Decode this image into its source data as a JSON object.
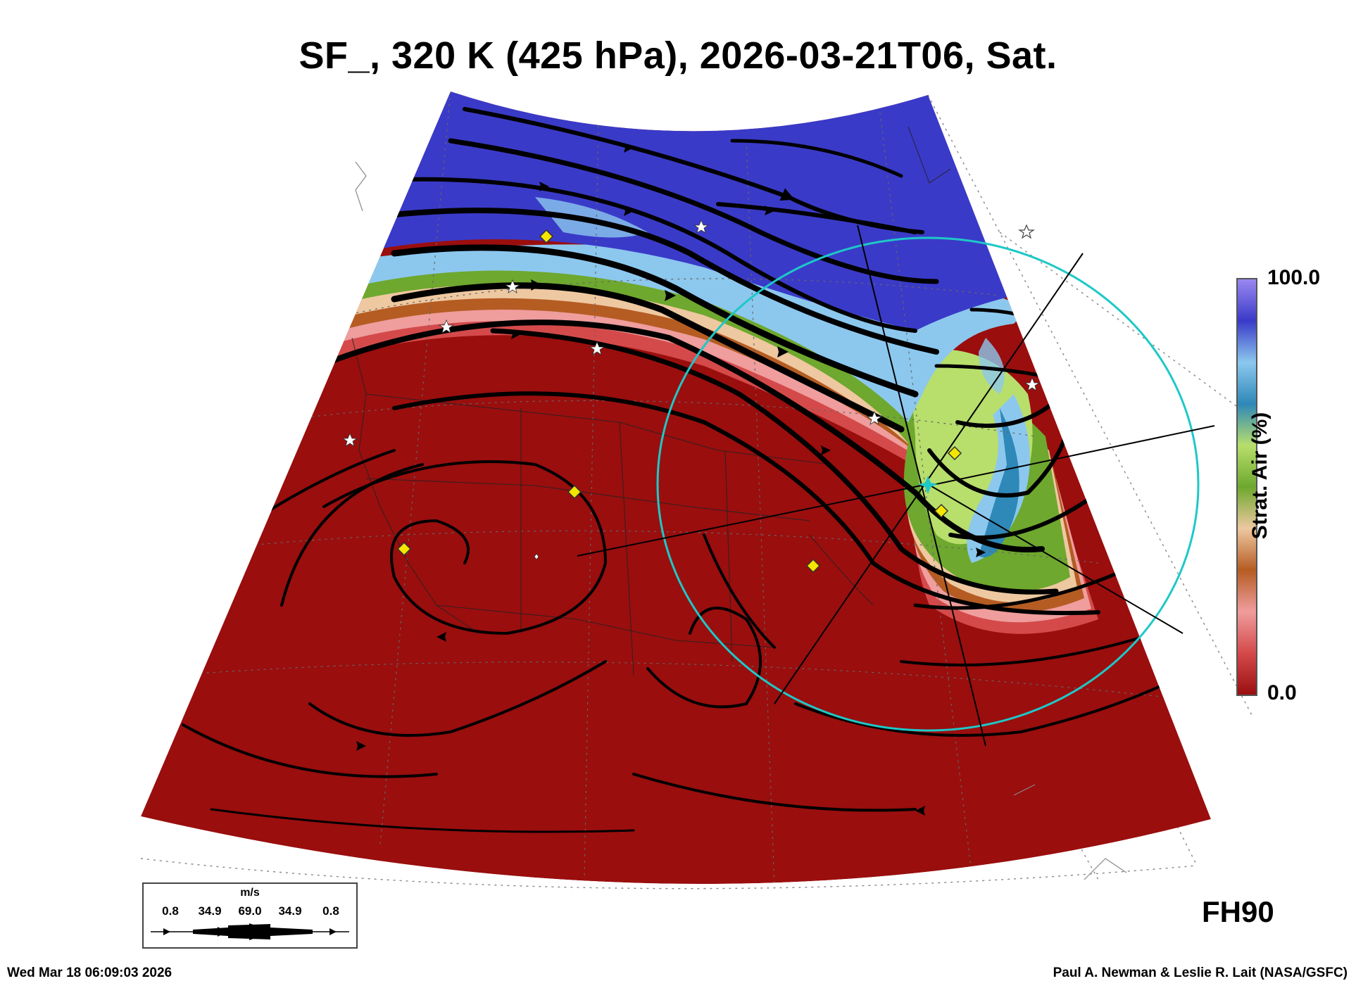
{
  "title": "SF_, 320 K (425 hPa), 2026-03-21T06, Sat.",
  "forecast_hour": "FH90",
  "colorbar": {
    "label": "Strat. Air (%)",
    "max_label": "100.0",
    "min_label": "0.0",
    "colors": [
      "#9a0e0e",
      "#d44a4a",
      "#ef9d9d",
      "#b55c23",
      "#eec8a0",
      "#6ea82e",
      "#b8de6c",
      "#2e88b8",
      "#8cc8ee",
      "#3a3ac8",
      "#9a88f0"
    ]
  },
  "wind_legend": {
    "unit": "m/s",
    "values": [
      "0.8",
      "34.9",
      "69.0",
      "34.9",
      "0.8"
    ]
  },
  "footer": {
    "timestamp": "Wed Mar 18 06:09:03 2026",
    "credit": "Paul A. Newman & Leslie R. Lait (NASA/GSFC)"
  },
  "map": {
    "stratospheric_air_region": "north",
    "tropospheric_air_region": "south",
    "site_circle_color": "#1ec8c8",
    "marker_colors": {
      "diamond": "#f5e600",
      "star": "#ffffff"
    }
  }
}
